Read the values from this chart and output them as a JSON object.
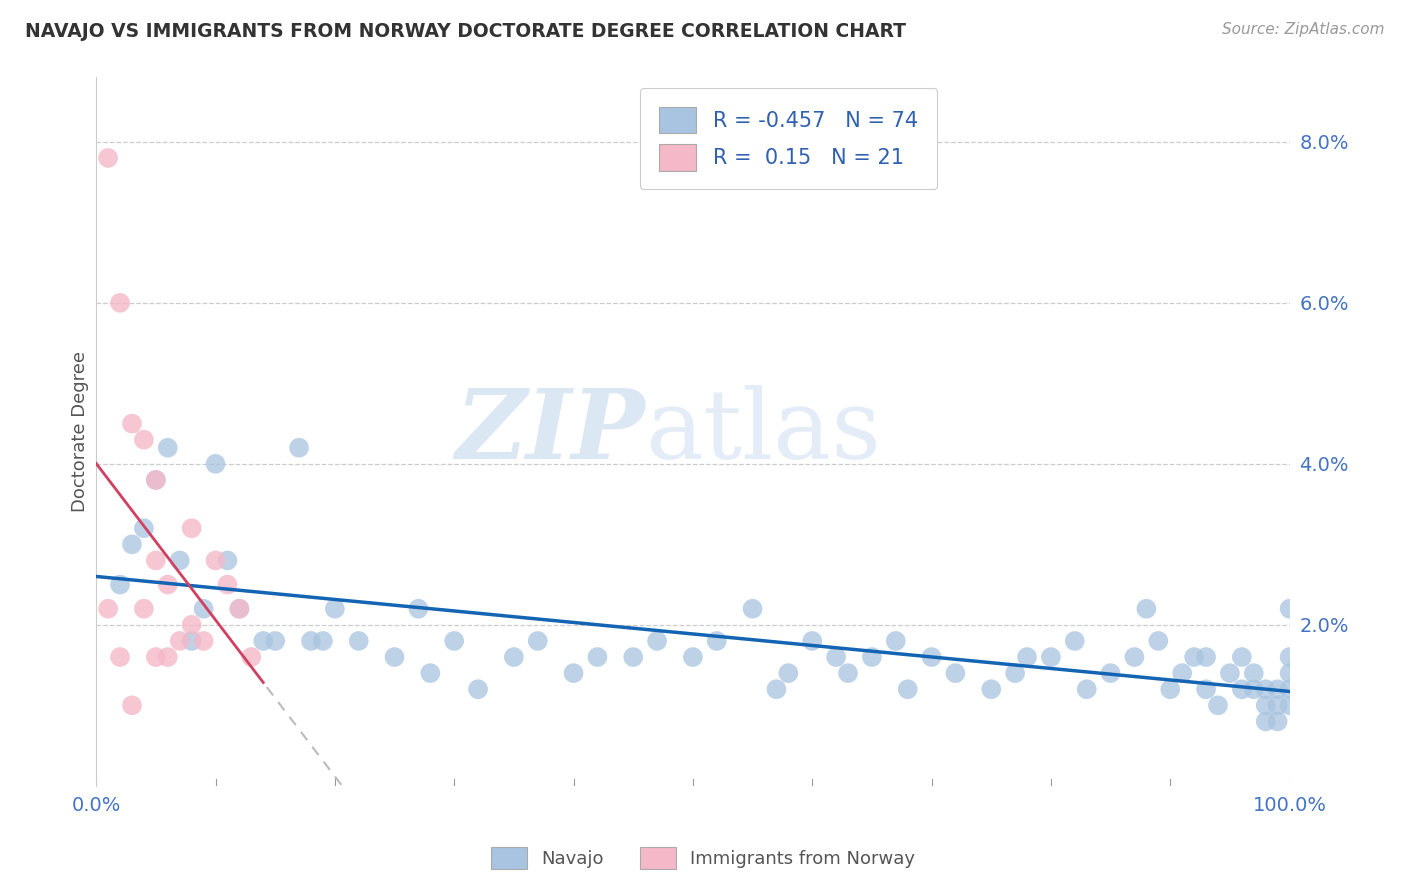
{
  "title": "NAVAJO VS IMMIGRANTS FROM NORWAY DOCTORATE DEGREE CORRELATION CHART",
  "source": "Source: ZipAtlas.com",
  "ylabel": "Doctorate Degree",
  "xlim": [
    0.0,
    1.0
  ],
  "ylim": [
    -0.002,
    0.088
  ],
  "plot_ylim": [
    0.0,
    0.088
  ],
  "ytick_vals": [
    0.02,
    0.04,
    0.06,
    0.08
  ],
  "ytick_labels": [
    "2.0%",
    "4.0%",
    "6.0%",
    "8.0%"
  ],
  "xtick_vals": [
    0.0,
    0.1,
    0.2,
    0.3,
    0.4,
    0.5,
    0.6,
    0.7,
    0.8,
    0.9,
    1.0
  ],
  "xtick_labels": [
    "0.0%",
    "",
    "",
    "",
    "",
    "",
    "",
    "",
    "",
    "",
    "100.0%"
  ],
  "navajo_R": -0.457,
  "navajo_N": 74,
  "norway_R": 0.15,
  "norway_N": 21,
  "navajo_color": "#a8c4e0",
  "norway_color": "#f4b8c8",
  "navajo_line_color": "#1464b4",
  "norway_line_color": "#d04060",
  "norway_dash_color": "#cccccc",
  "navajo_x": [
    0.02,
    0.03,
    0.05,
    0.06,
    0.07,
    0.09,
    0.1,
    0.12,
    0.14,
    0.17,
    0.18,
    0.2,
    0.22,
    0.25,
    0.27,
    0.3,
    0.32,
    0.35,
    0.37,
    0.4,
    0.42,
    0.45,
    0.47,
    0.5,
    0.52,
    0.55,
    0.57,
    0.58,
    0.6,
    0.62,
    0.63,
    0.65,
    0.67,
    0.68,
    0.7,
    0.72,
    0.75,
    0.77,
    0.78,
    0.8,
    0.82,
    0.83,
    0.85,
    0.87,
    0.88,
    0.89,
    0.9,
    0.91,
    0.92,
    0.93,
    0.93,
    0.94,
    0.95,
    0.96,
    0.96,
    0.97,
    0.97,
    0.98,
    0.98,
    0.98,
    0.99,
    0.99,
    0.99,
    1.0,
    1.0,
    1.0,
    1.0,
    1.0,
    0.04,
    0.08,
    0.11,
    0.15,
    0.19,
    0.28
  ],
  "navajo_y": [
    0.025,
    0.03,
    0.038,
    0.042,
    0.028,
    0.022,
    0.04,
    0.022,
    0.018,
    0.042,
    0.018,
    0.022,
    0.018,
    0.016,
    0.022,
    0.018,
    0.012,
    0.016,
    0.018,
    0.014,
    0.016,
    0.016,
    0.018,
    0.016,
    0.018,
    0.022,
    0.012,
    0.014,
    0.018,
    0.016,
    0.014,
    0.016,
    0.018,
    0.012,
    0.016,
    0.014,
    0.012,
    0.014,
    0.016,
    0.016,
    0.018,
    0.012,
    0.014,
    0.016,
    0.022,
    0.018,
    0.012,
    0.014,
    0.016,
    0.012,
    0.016,
    0.01,
    0.014,
    0.012,
    0.016,
    0.012,
    0.014,
    0.008,
    0.01,
    0.012,
    0.008,
    0.01,
    0.012,
    0.01,
    0.014,
    0.012,
    0.016,
    0.022,
    0.032,
    0.018,
    0.028,
    0.018,
    0.018,
    0.014
  ],
  "norway_x": [
    0.01,
    0.01,
    0.02,
    0.02,
    0.03,
    0.03,
    0.04,
    0.04,
    0.05,
    0.05,
    0.05,
    0.06,
    0.06,
    0.07,
    0.08,
    0.08,
    0.09,
    0.1,
    0.11,
    0.12,
    0.13
  ],
  "norway_y": [
    0.078,
    0.022,
    0.06,
    0.016,
    0.045,
    0.01,
    0.043,
    0.022,
    0.038,
    0.028,
    0.016,
    0.025,
    0.016,
    0.018,
    0.032,
    0.02,
    0.018,
    0.028,
    0.025,
    0.022,
    0.016
  ],
  "watermark_zip": "ZIP",
  "watermark_atlas": "atlas",
  "background_color": "#ffffff",
  "grid_color": "#cccccc"
}
